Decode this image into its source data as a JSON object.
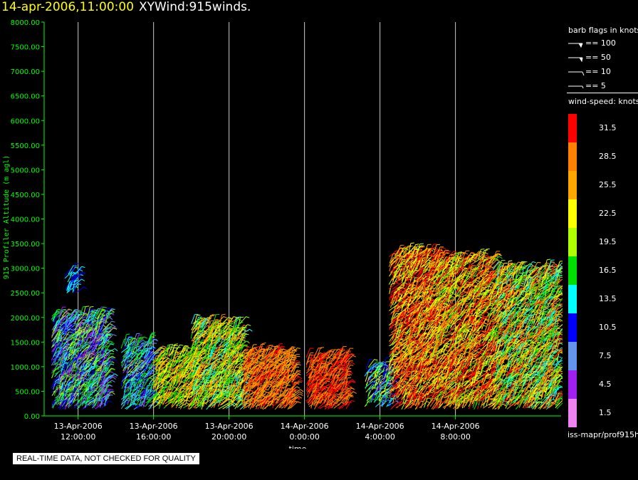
{
  "header": {
    "date_time": "14-apr-2006,11:00:00",
    "product": "XYWind:915winds."
  },
  "chart_data": {
    "type": "scatter",
    "plot_style": "wind barbs colored by speed",
    "ylabel": "915 Profiler Altitude (m agl)",
    "xlabel": "time",
    "ylim": [
      0,
      8000
    ],
    "xlim_hours": [
      10.2,
      37.6
    ],
    "yticks": [
      "8000.00",
      "7500.00",
      "7000.00",
      "6500.00",
      "6000.00",
      "5500.00",
      "5000.00",
      "4500.00",
      "4000.00",
      "3500.00",
      "3000.00",
      "2500.00",
      "2000.00",
      "1500.00",
      "1000.00",
      "500.00",
      "0.00"
    ],
    "xticks": [
      {
        "date": "13-Apr-2006",
        "time": "12:00:00"
      },
      {
        "date": "13-Apr-2006",
        "time": "16:00:00"
      },
      {
        "date": "13-Apr-2006",
        "time": "20:00:00"
      },
      {
        "date": "14-Apr-2006",
        "time": "0:00:00"
      },
      {
        "date": "14-Apr-2006",
        "time": "4:00:00"
      },
      {
        "date": "14-Apr-2006",
        "time": "8:00:00"
      }
    ],
    "grid": "vertical lines at x ticks",
    "speed_units": "knots",
    "speed_levels": [
      {
        "label": "31.5",
        "color": "#ff0000"
      },
      {
        "label": "28.5",
        "color": "#ff8000"
      },
      {
        "label": "25.5",
        "color": "#ffa500"
      },
      {
        "label": "22.5",
        "color": "#ffff00"
      },
      {
        "label": "19.5",
        "color": "#b0ff00"
      },
      {
        "label": "16.5",
        "color": "#00e000"
      },
      {
        "label": "13.5",
        "color": "#00ffff"
      },
      {
        "label": "10.5",
        "color": "#0000ff"
      },
      {
        "label": "7.5",
        "color": "#6495ed"
      },
      {
        "label": "4.5",
        "color": "#a020f0"
      },
      {
        "label": "1.5",
        "color": "#ee82ee"
      }
    ],
    "data_blocks": [
      {
        "t_start": 10.6,
        "t_end": 13.5,
        "alt_min": 150,
        "alt_max": 2050,
        "speed_mean": 12,
        "speed_spread": 9
      },
      {
        "t_start": 11.3,
        "t_end": 11.9,
        "alt_min": 2500,
        "alt_max": 2900,
        "speed_mean": 12,
        "speed_spread": 3
      },
      {
        "t_start": 14.3,
        "t_end": 15.9,
        "alt_min": 150,
        "alt_max": 1500,
        "speed_mean": 12,
        "speed_spread": 7
      },
      {
        "t_start": 15.9,
        "t_end": 18.0,
        "alt_min": 150,
        "alt_max": 1300,
        "speed_mean": 22,
        "speed_spread": 7
      },
      {
        "t_start": 18.0,
        "t_end": 20.7,
        "alt_min": 150,
        "alt_max": 1900,
        "speed_mean": 21,
        "speed_spread": 8
      },
      {
        "t_start": 20.7,
        "t_end": 23.4,
        "alt_min": 150,
        "alt_max": 1300,
        "speed_mean": 28,
        "speed_spread": 4
      },
      {
        "t_start": 24.1,
        "t_end": 26.2,
        "alt_min": 150,
        "alt_max": 1200,
        "speed_mean": 30,
        "speed_spread": 2
      },
      {
        "t_start": 27.2,
        "t_end": 28.5,
        "alt_min": 200,
        "alt_max": 1000,
        "speed_mean": 14,
        "speed_spread": 9
      },
      {
        "t_start": 28.5,
        "t_end": 31.0,
        "alt_min": 150,
        "alt_max": 3300,
        "speed_mean": 27,
        "speed_spread": 8
      },
      {
        "t_start": 31.0,
        "t_end": 34.0,
        "alt_min": 150,
        "alt_max": 3200,
        "speed_mean": 26,
        "speed_spread": 9
      },
      {
        "t_start": 34.0,
        "t_end": 37.4,
        "alt_min": 150,
        "alt_max": 3000,
        "speed_mean": 22,
        "speed_spread": 10
      }
    ]
  },
  "legend": {
    "barb_title": "barb flags in knots",
    "barb_items": [
      {
        "label": "== 100"
      },
      {
        "label": "== 50"
      },
      {
        "label": "== 10"
      },
      {
        "label": "== 5"
      }
    ],
    "speed_title": "wind-speed: knots"
  },
  "footer": {
    "quality_note": "REAL-TIME DATA, NOT CHECKED FOR QUALITY",
    "source": "iss-mapr/prof915h"
  },
  "colors": {
    "axis": "#00ff00",
    "tick_text": "#00ff00",
    "gridline": "#cccccc",
    "title_date": "#ffff00"
  }
}
